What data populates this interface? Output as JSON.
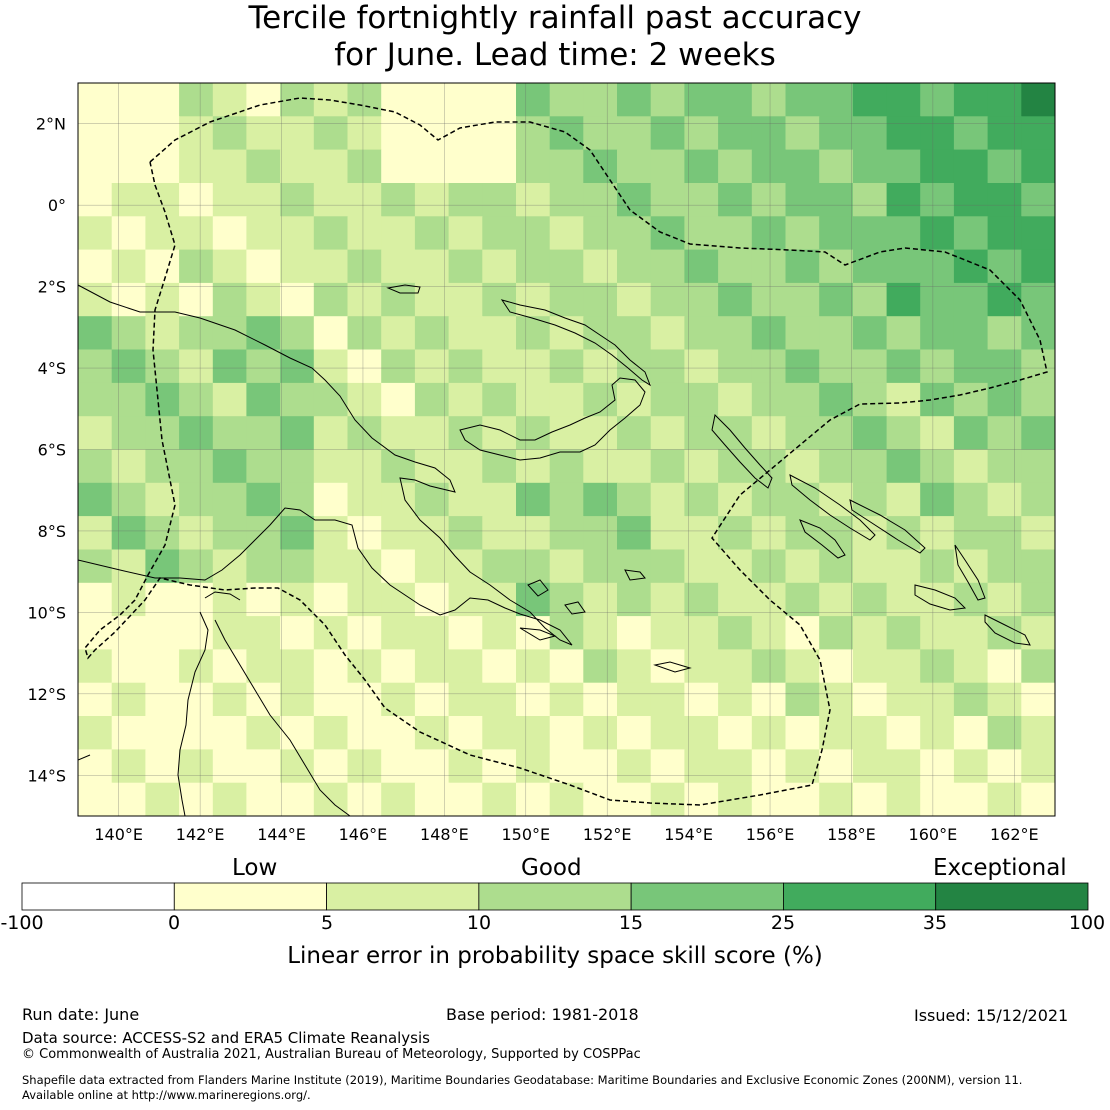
{
  "title": {
    "line1": "Tercile fortnightly rainfall past accuracy",
    "line2": "for June. Lead time: 2 weeks"
  },
  "map": {
    "lon_range": [
      139,
      163
    ],
    "lat_range": [
      -15,
      3
    ],
    "lon_ticks": [
      "140°E",
      "142°E",
      "144°E",
      "146°E",
      "148°E",
      "150°E",
      "152°E",
      "154°E",
      "156°E",
      "158°E",
      "160°E",
      "162°E"
    ],
    "lat_ticks": [
      "2°N",
      "0°",
      "2°S",
      "4°S",
      "6°S",
      "8°S",
      "10°S",
      "12°S",
      "14°S"
    ],
    "grid_lines": true,
    "region_boundary": "dashed EEZ outline of Papua New Guinea",
    "palette_by_skill_band": [
      "#ffffff",
      "#ffffcc",
      "#d9f0a3",
      "#addd8e",
      "#78c679",
      "#41ab5d",
      "#238443"
    ]
  },
  "colorbar": {
    "categories": [
      "Low",
      "Good",
      "Exceptional"
    ],
    "bounds": [
      "-100",
      "0",
      "5",
      "10",
      "15",
      "25",
      "35",
      "100"
    ],
    "colors": [
      "#ffffff",
      "#ffffcc",
      "#d9f0a3",
      "#addd8e",
      "#78c679",
      "#41ab5d",
      "#238443"
    ],
    "label": "Linear error in probability space skill score (%)"
  },
  "footer": {
    "run_date": "Run date: June",
    "base_period": "Base period: 1981-2018",
    "issued": "Issued: 15/12/2021",
    "data_source": "Data source: ACCESS-S2 and ERA5 Climate Reanalysis",
    "copyright": "© Commonwealth of Australia 2021, Australian Bureau of Meteorology, Supported by COSPPac",
    "shapefile_1": "Shapefile data extracted from Flanders Marine Institute (2019), Maritime Boundaries Geodatabase: Maritime Boundaries and Exclusive Economic Zones (200NM), version 11.",
    "shapefile_2": "Available online at http://www.marineregions.org/."
  }
}
